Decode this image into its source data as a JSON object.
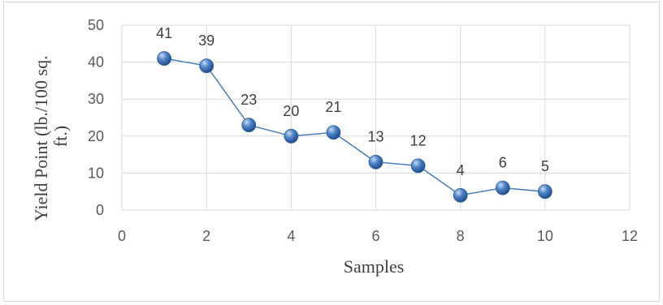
{
  "chart_data": {
    "type": "scatter",
    "title": "",
    "xlabel": "Samples",
    "ylabel": "Yield Point (lb./100 sq. ft.)",
    "ylabel_lines": [
      "Yield Point (lb./100 sq.",
      "ft.)"
    ],
    "xlim": [
      0,
      12
    ],
    "ylim": [
      0,
      50
    ],
    "x_ticks": [
      0,
      2,
      4,
      6,
      8,
      10,
      12
    ],
    "y_ticks": [
      0,
      10,
      20,
      30,
      40,
      50
    ],
    "grid": true,
    "legend": "none",
    "marker_color": "#4a7ebb",
    "line_color": "#4a7ebb",
    "series": [
      {
        "x": [
          1,
          2,
          3,
          4,
          5,
          6,
          7,
          8,
          9,
          10
        ],
        "y": [
          41,
          39,
          23,
          20,
          21,
          13,
          12,
          4,
          6,
          5
        ],
        "labels": [
          "41",
          "39",
          "23",
          "20",
          "21",
          "13",
          "12",
          "4",
          "6",
          "5"
        ]
      }
    ]
  }
}
